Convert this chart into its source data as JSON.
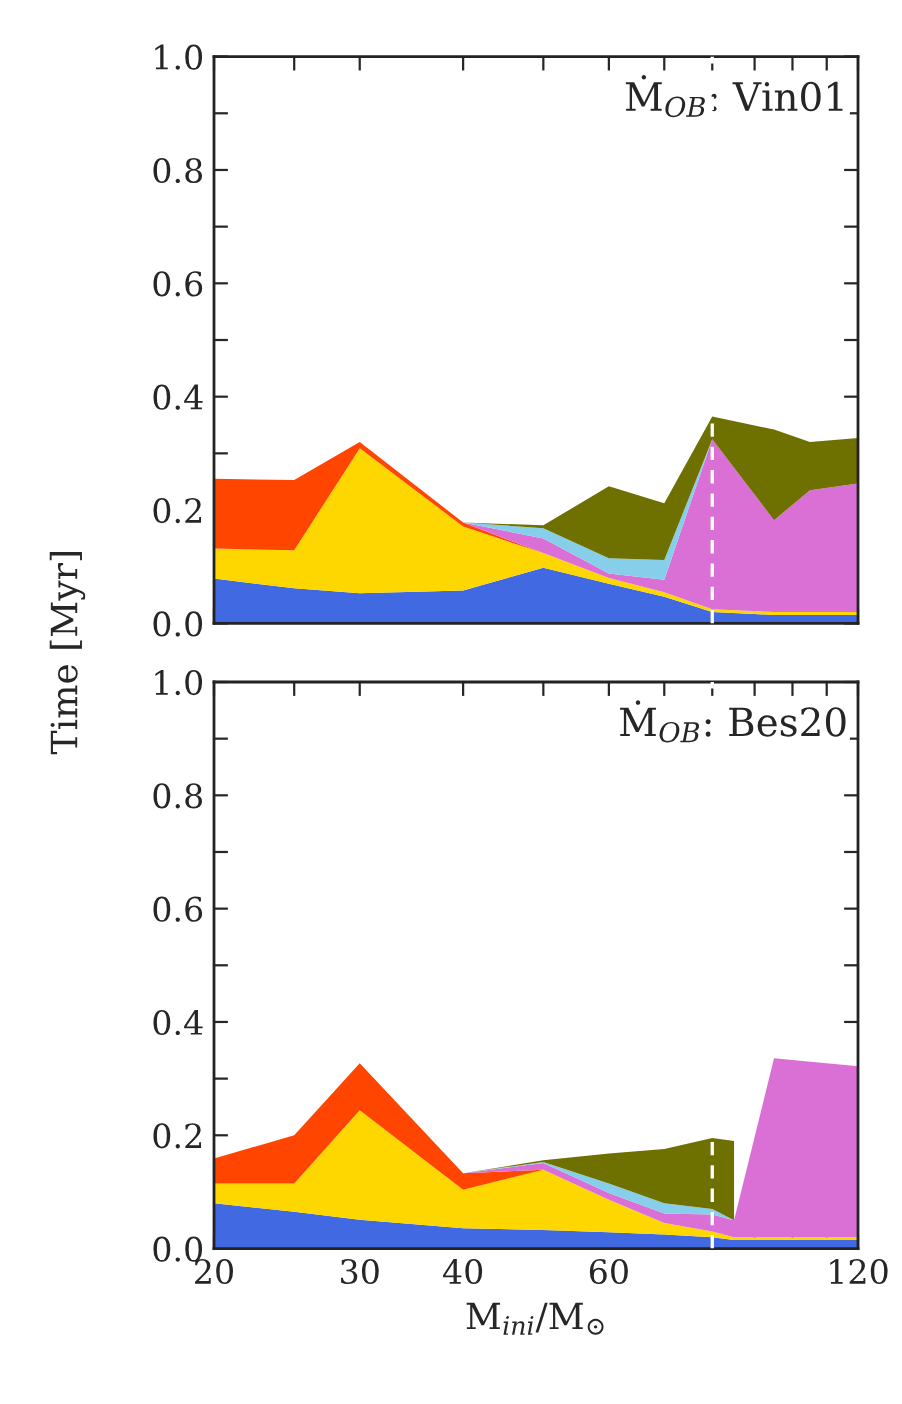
{
  "chart_data": [
    {
      "type": "area",
      "stacked": true,
      "log": "x",
      "annotations": [
        "Ṁ$_{OB}$: Vin01"
      ],
      "ylabel": "Time [Myr]",
      "tick_labels": "y",
      "x": [
        20,
        25,
        30,
        40,
        50,
        60,
        70,
        80,
        95,
        105,
        120
      ],
      "series": [
        {
          "color": "#4169e1",
          "values": [
            0.079,
            0.062,
            0.053,
            0.058,
            0.098,
            0.07,
            0.047,
            0.02,
            0.015,
            0.015,
            0.015
          ]
        },
        {
          "color": "#ffd700",
          "values": [
            0.053,
            0.067,
            0.256,
            0.113,
            0.026,
            0.01,
            0.008,
            0.005,
            0.005,
            0.005,
            0.005
          ]
        },
        {
          "color": "#ff4500",
          "values": [
            0.123,
            0.124,
            0.011,
            0.007,
            0,
            0,
            0,
            0,
            0,
            0,
            0
          ]
        },
        {
          "color": "#da70d6",
          "values": [
            0,
            0,
            0,
            0,
            0.026,
            0.008,
            0.022,
            0.3,
            0.162,
            0.215,
            0.227
          ]
        },
        {
          "color": "#87ceeb",
          "values": [
            0,
            0,
            0,
            0,
            0.018,
            0.027,
            0.035,
            0,
            0,
            0,
            0
          ]
        },
        {
          "color": "#6e7000",
          "values": [
            0,
            0,
            0,
            0,
            0.005,
            0.127,
            0.1,
            0.04,
            0.16,
            0.085,
            0.08
          ]
        }
      ],
      "xlim": [
        20,
        120
      ],
      "xticks": [
        20,
        {
          "value": 25,
          "label": null
        },
        30,
        40,
        {
          "value": 50,
          "label": null
        },
        60,
        {
          "value": 70,
          "label": null
        },
        {
          "value": 80,
          "label": null
        },
        {
          "value": 90,
          "label": null
        },
        {
          "value": 100,
          "label": null
        },
        {
          "value": 110,
          "label": null
        },
        120
      ],
      "ylim": [
        0,
        1.0
      ],
      "yticks": [
        {
          "value": 0,
          "label": "0.0"
        },
        {
          "value": 0.1,
          "label": null
        },
        {
          "value": 0.2,
          "label": "0.2"
        },
        {
          "value": 0.3,
          "label": null
        },
        {
          "value": 0.4,
          "label": "0.4"
        },
        {
          "value": 0.5,
          "label": null
        },
        {
          "value": 0.6,
          "label": "0.6"
        },
        {
          "value": 0.7,
          "label": null
        },
        {
          "value": 0.8,
          "label": "0.8"
        },
        {
          "value": 0.9,
          "label": null
        },
        {
          "value": 1.0,
          "label": "1.0"
        }
      ],
      "ref_lines": [
        {
          "axis": "x",
          "value": 80,
          "color": "#ffffff",
          "line_style": "dashed"
        }
      ]
    },
    {
      "type": "area",
      "stacked": true,
      "log": "x",
      "annotations": [
        "Ṁ$_{OB}$: Bes20"
      ],
      "xlabel": "M$_{ini}$/M$_{⊙}$",
      "x": [
        20,
        25,
        30,
        40,
        50,
        60,
        70,
        80,
        85,
        95,
        120
      ],
      "series": [
        {
          "color": "#4169e1",
          "values": [
            0.08,
            0.065,
            0.051,
            0.036,
            0.033,
            0.029,
            0.025,
            0.02,
            0.015,
            0.015,
            0.015
          ]
        },
        {
          "color": "#ffd700",
          "values": [
            0.035,
            0.05,
            0.193,
            0.068,
            0.106,
            0.057,
            0.02,
            0.01,
            0.005,
            0.005,
            0.005
          ]
        },
        {
          "color": "#ff4500",
          "values": [
            0.044,
            0.085,
            0.083,
            0.029,
            0,
            0,
            0,
            0,
            0,
            0,
            0
          ]
        },
        {
          "color": "#da70d6",
          "values": [
            0,
            0,
            0,
            0,
            0.012,
            0.012,
            0.017,
            0.03,
            0.03,
            0.316,
            0.302
          ]
        },
        {
          "color": "#87ceeb",
          "values": [
            0,
            0,
            0,
            0,
            0.002,
            0.017,
            0.018,
            0.01,
            0,
            0,
            0
          ]
        },
        {
          "color": "#6e7000",
          "values": [
            0,
            0,
            0,
            0,
            0.003,
            0.053,
            0.096,
            0.125,
            0.14,
            null,
            null
          ]
        }
      ],
      "xlim": [
        20,
        120
      ],
      "xticks": [
        20,
        {
          "value": 25,
          "label": null
        },
        30,
        40,
        {
          "value": 50,
          "label": null
        },
        60,
        {
          "value": 70,
          "label": null
        },
        {
          "value": 80,
          "label": null
        },
        {
          "value": 90,
          "label": null
        },
        {
          "value": 100,
          "label": null
        },
        {
          "value": 110,
          "label": null
        },
        120
      ],
      "ylim": [
        0,
        1.0
      ],
      "yticks": [
        {
          "value": 0,
          "label": "0.0"
        },
        {
          "value": 0.1,
          "label": null
        },
        {
          "value": 0.2,
          "label": "0.2"
        },
        {
          "value": 0.3,
          "label": null
        },
        {
          "value": 0.4,
          "label": "0.4"
        },
        {
          "value": 0.5,
          "label": null
        },
        {
          "value": 0.6,
          "label": "0.6"
        },
        {
          "value": 0.7,
          "label": null
        },
        {
          "value": 0.8,
          "label": "0.8"
        },
        {
          "value": 0.9,
          "label": null
        },
        {
          "value": 1.0,
          "label": "1.0"
        }
      ],
      "ref_lines": [
        {
          "axis": "x",
          "value": 80,
          "color": "#ffffff",
          "line_style": "dashed"
        }
      ]
    }
  ]
}
